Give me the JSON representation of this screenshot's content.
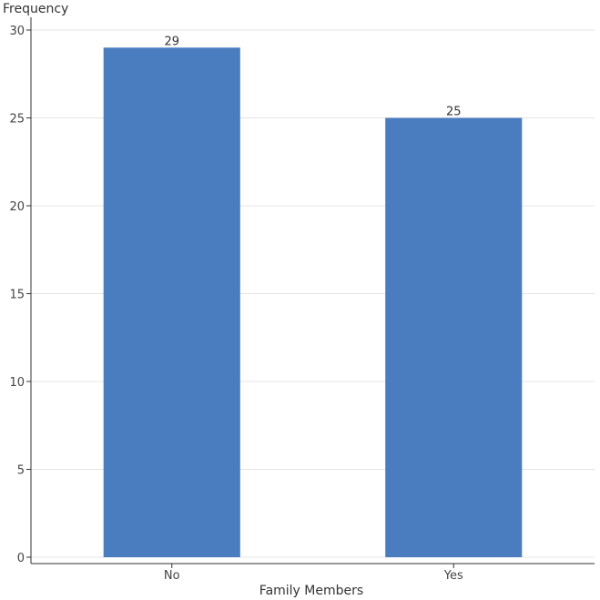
{
  "chart_data": {
    "type": "bar",
    "categories": [
      "No",
      "Yes"
    ],
    "values": [
      29,
      25
    ],
    "data_labels": [
      "29",
      "25"
    ],
    "title": "",
    "xlabel": "Family Members",
    "ylabel": "Frequency",
    "ylim": [
      0,
      30
    ],
    "yticks": [
      0,
      5,
      10,
      15,
      20,
      25,
      30
    ],
    "ytick_labels": [
      "0",
      "5",
      "10",
      "15",
      "20",
      "25",
      "30"
    ],
    "grid": true,
    "legend": "none",
    "colors": {
      "bar": "#4a7cc0",
      "grid": "#e4e4e4",
      "axis": "#333333"
    }
  }
}
